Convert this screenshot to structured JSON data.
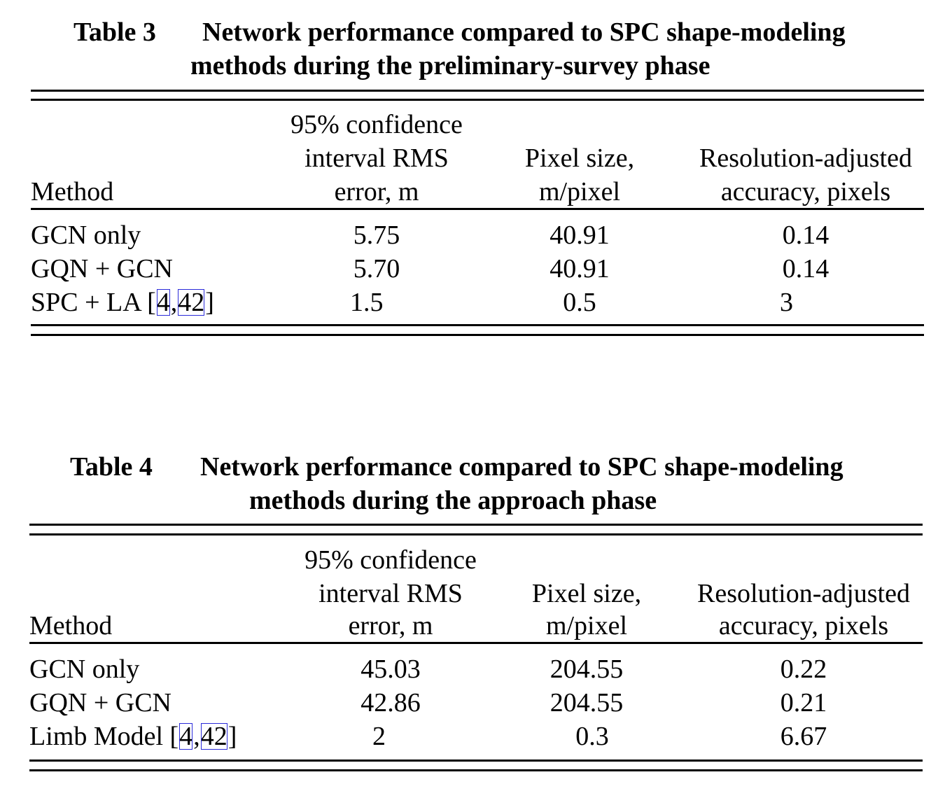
{
  "tables": [
    {
      "label": "Table 3",
      "title_line1": "Network performance compared to SPC shape-modeling",
      "title_line2": "methods during the preliminary-survey phase",
      "headers": {
        "method": "Method",
        "rms_1": "95% confidence",
        "rms_2": "interval RMS",
        "rms_3": "error, m",
        "pix_1": "Pixel size,",
        "pix_2": "m/pixel",
        "acc_1": "Resolution-adjusted",
        "acc_2": "accuracy, pixels"
      },
      "rows": [
        {
          "method": "GCN only",
          "rms": "5.75",
          "pixel": "40.91",
          "acc": "0.14"
        },
        {
          "method": "GQN + GCN",
          "rms": "5.70",
          "pixel": "40.91",
          "acc": "0.14"
        },
        {
          "method_prefix": "SPC + LA [",
          "ref1": "4",
          "sep": ",",
          "ref2": "42",
          "method_suffix": "]",
          "rms": "1.5",
          "pixel": "0.5",
          "acc": "3"
        }
      ]
    },
    {
      "label": "Table 4",
      "title_line1": "Network performance compared to SPC shape-modeling",
      "title_line2": "methods during the approach phase",
      "headers": {
        "method": "Method",
        "rms_1": "95% confidence",
        "rms_2": "interval RMS",
        "rms_3": "error, m",
        "pix_1": "Pixel size,",
        "pix_2": "m/pixel",
        "acc_1": "Resolution-adjusted",
        "acc_2": "accuracy, pixels"
      },
      "rows": [
        {
          "method": "GCN only",
          "rms": "45.03",
          "pixel": "204.55",
          "acc": "0.22"
        },
        {
          "method": "GQN + GCN",
          "rms": "42.86",
          "pixel": "204.55",
          "acc": "0.21"
        },
        {
          "method_prefix": "Limb Model [",
          "ref1": "4",
          "sep": ",",
          "ref2": "42",
          "method_suffix": "]",
          "rms": "2",
          "pixel": "0.3",
          "acc": "6.67"
        }
      ]
    }
  ]
}
